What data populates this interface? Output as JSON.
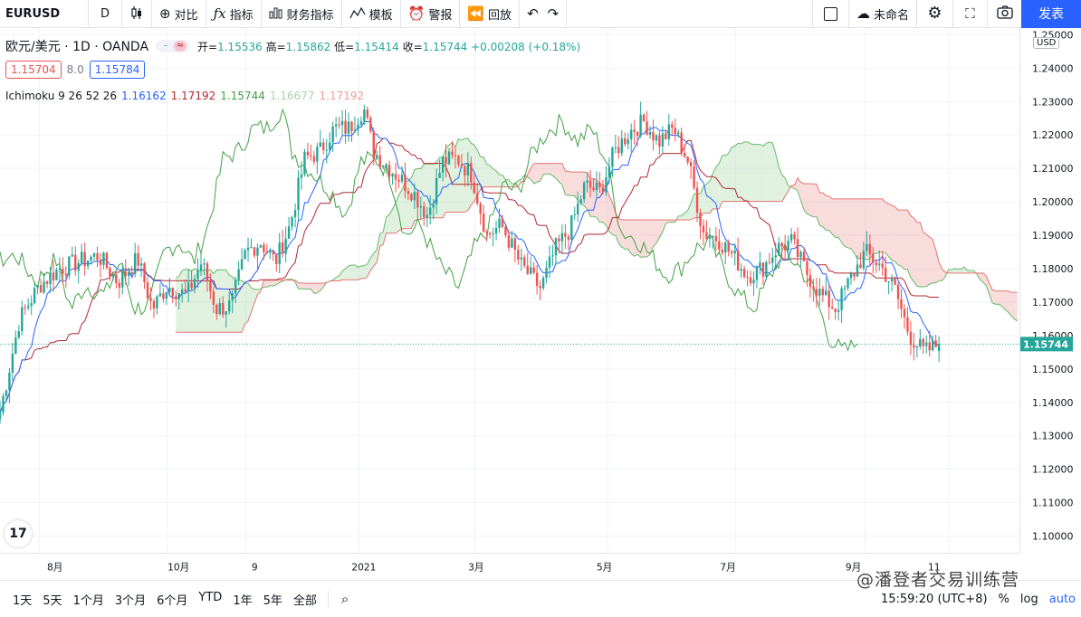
{
  "toolbar": {
    "symbol": "EURUSD",
    "interval": "D",
    "compare": "对比",
    "indicators": "指标",
    "financials": "财务指标",
    "templates": "模板",
    "alert": "警报",
    "replay": "回放",
    "layout_name": "未命名",
    "publish": "发表"
  },
  "legend": {
    "title": "欧元/美元 · 1D · OANDA",
    "open_label": "开=",
    "open": "1.15536",
    "high_label": "高=",
    "high": "1.15862",
    "low_label": "低=",
    "low": "1.15414",
    "close_label": "收=",
    "close": "1.15744",
    "change": "+0.00208 (+0.18%)",
    "sell": "1.15704",
    "spread": "8.0",
    "buy": "1.15784"
  },
  "indicator": {
    "name": "Ichimoku 9 26 52 26",
    "v1": "1.16162",
    "v2": "1.17192",
    "v3": "1.15744",
    "v4": "1.16677",
    "v5": "1.17192"
  },
  "axis": {
    "currency": "USD",
    "last_price": "1.15744"
  },
  "bottom": {
    "ranges": [
      "1天",
      "5天",
      "1个月",
      "3个月",
      "6个月",
      "YTD",
      "1年",
      "5年",
      "全部"
    ],
    "time": "15:59:20 (UTC+8)",
    "pct": "%",
    "log": "log",
    "auto": "auto",
    "watermark": "@潘登者交易训练营"
  },
  "colors": {
    "up": "#26a69a",
    "down": "#ef5350",
    "conversion": "#2962ff",
    "base": "#b22833",
    "lagging": "#43a047",
    "cloud_green": "#a5d6a7",
    "cloud_red": "#ef9a9a",
    "accent": "#2962ff"
  },
  "chart_data": {
    "type": "candlestick",
    "ylim": [
      1.095,
      1.252
    ],
    "y_ticks": [
      1.25,
      1.24,
      1.23,
      1.22,
      1.21,
      1.2,
      1.19,
      1.18,
      1.17,
      1.16,
      1.15,
      1.14,
      1.13,
      1.12,
      1.11,
      1.1
    ],
    "x_ticks": [
      {
        "label": "8月",
        "t": 0.04
      },
      {
        "label": "10月",
        "t": 0.17
      },
      {
        "label": "9",
        "t": 0.25
      },
      {
        "label": "2021",
        "t": 0.365
      },
      {
        "label": "3月",
        "t": 0.483
      },
      {
        "label": "5月",
        "t": 0.618
      },
      {
        "label": "7月",
        "t": 0.748
      },
      {
        "label": "9月",
        "t": 0.88
      },
      {
        "label": "11",
        "t": 0.965
      }
    ],
    "close_path": [
      [
        0.0,
        1.137
      ],
      [
        0.02,
        1.165
      ],
      [
        0.04,
        1.175
      ],
      [
        0.06,
        1.18
      ],
      [
        0.08,
        1.182
      ],
      [
        0.1,
        1.184
      ],
      [
        0.12,
        1.176
      ],
      [
        0.14,
        1.183
      ],
      [
        0.155,
        1.168
      ],
      [
        0.17,
        1.175
      ],
      [
        0.19,
        1.172
      ],
      [
        0.205,
        1.182
      ],
      [
        0.22,
        1.168
      ],
      [
        0.235,
        1.169
      ],
      [
        0.25,
        1.185
      ],
      [
        0.265,
        1.188
      ],
      [
        0.28,
        1.182
      ],
      [
        0.295,
        1.193
      ],
      [
        0.31,
        1.213
      ],
      [
        0.325,
        1.215
      ],
      [
        0.34,
        1.222
      ],
      [
        0.355,
        1.222
      ],
      [
        0.37,
        1.228
      ],
      [
        0.38,
        1.215
      ],
      [
        0.4,
        1.209
      ],
      [
        0.42,
        1.203
      ],
      [
        0.435,
        1.196
      ],
      [
        0.45,
        1.212
      ],
      [
        0.465,
        1.213
      ],
      [
        0.48,
        1.208
      ],
      [
        0.495,
        1.19
      ],
      [
        0.51,
        1.193
      ],
      [
        0.53,
        1.181
      ],
      [
        0.55,
        1.174
      ],
      [
        0.565,
        1.186
      ],
      [
        0.58,
        1.192
      ],
      [
        0.595,
        1.205
      ],
      [
        0.61,
        1.203
      ],
      [
        0.625,
        1.215
      ],
      [
        0.64,
        1.221
      ],
      [
        0.655,
        1.224
      ],
      [
        0.67,
        1.218
      ],
      [
        0.685,
        1.222
      ],
      [
        0.7,
        1.212
      ],
      [
        0.715,
        1.191
      ],
      [
        0.73,
        1.189
      ],
      [
        0.745,
        1.184
      ],
      [
        0.76,
        1.178
      ],
      [
        0.775,
        1.18
      ],
      [
        0.79,
        1.186
      ],
      [
        0.805,
        1.188
      ],
      [
        0.82,
        1.179
      ],
      [
        0.835,
        1.172
      ],
      [
        0.85,
        1.168
      ],
      [
        0.865,
        1.177
      ],
      [
        0.88,
        1.185
      ],
      [
        0.895,
        1.181
      ],
      [
        0.91,
        1.174
      ],
      [
        0.925,
        1.16
      ],
      [
        0.94,
        1.155
      ],
      [
        0.955,
        1.1574
      ]
    ]
  }
}
